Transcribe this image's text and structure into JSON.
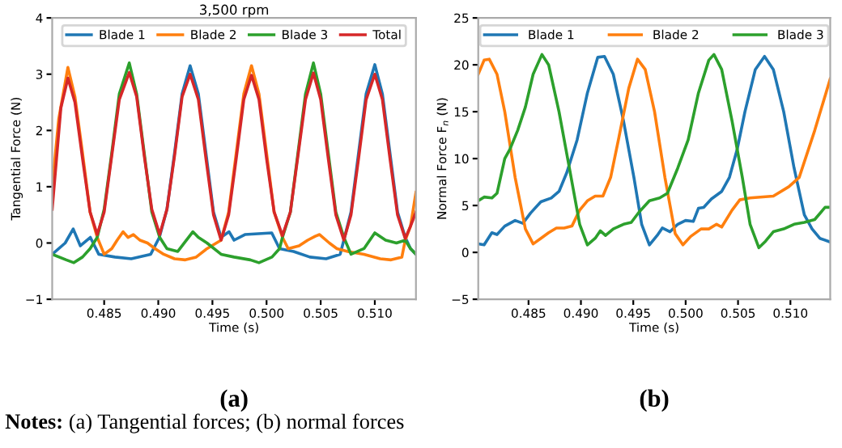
{
  "chart_data": [
    {
      "type": "line",
      "title": "3,500 rpm",
      "xlabel": "Time (s)",
      "ylabel": "Tangential Force (N)",
      "xlim": [
        0.4802,
        0.5138
      ],
      "xticks": [
        {
          "value": 0.485,
          "label": "0.485"
        },
        {
          "value": 0.49,
          "label": "0.490"
        },
        {
          "value": 0.495,
          "label": "0.495"
        },
        {
          "value": 0.5,
          "label": "0.500"
        },
        {
          "value": 0.505,
          "label": "0.505"
        },
        {
          "value": 0.51,
          "label": "0.510"
        }
      ],
      "ylim": [
        -1,
        4
      ],
      "yticks": [
        {
          "value": -1,
          "label": "−1"
        },
        0,
        1,
        2,
        3,
        4
      ],
      "legend": "top",
      "grid": false,
      "annotations": [
        "(a)",
        "Notes: (a) Tangential forces; (b) normal forces"
      ],
      "series": [
        {
          "name": "Blade 1",
          "color": "#1f77b4",
          "x": [
            0.4802,
            0.4814,
            0.48214,
            0.4828,
            0.48372,
            0.4845,
            0.486,
            0.4875,
            0.4893,
            0.4901,
            0.4908,
            0.4915,
            0.4922,
            0.49294,
            0.4937,
            0.4944,
            0.4951,
            0.4958,
            0.49654,
            0.497,
            0.498,
            0.50048,
            0.5012,
            0.5025,
            0.504,
            0.5055,
            0.5068,
            0.50714,
            0.5078,
            0.5085,
            0.5092,
            0.51,
            0.5107,
            0.5114,
            0.5121,
            0.51281,
            0.5133,
            0.5138
          ],
          "values": [
            -0.2,
            0.0,
            0.25,
            -0.05,
            0.1,
            -0.2,
            -0.25,
            -0.28,
            -0.2,
            0.1,
            0.6,
            1.6,
            2.65,
            3.15,
            2.65,
            1.6,
            0.55,
            0.1,
            0.2,
            0.05,
            0.15,
            0.18,
            -0.1,
            -0.15,
            -0.25,
            -0.28,
            -0.2,
            0.05,
            0.55,
            1.6,
            2.65,
            3.17,
            2.65,
            1.6,
            0.55,
            0.1,
            -0.1,
            -0.2
          ]
        },
        {
          "name": "Blade 2",
          "color": "#ff7f0e",
          "x": [
            0.4802,
            0.4808,
            0.48165,
            0.4823,
            0.483,
            0.4837,
            0.48436,
            0.485,
            0.4857,
            0.4862,
            0.48675,
            0.4872,
            0.4877,
            0.4883,
            0.489,
            0.4897,
            0.4905,
            0.4915,
            0.4925,
            0.4935,
            0.4945,
            0.4958,
            0.4965,
            0.4972,
            0.4979,
            0.49861,
            0.4993,
            0.5,
            0.5007,
            0.50147,
            0.502,
            0.503,
            0.5038,
            0.5045,
            0.5049,
            0.5058,
            0.5065,
            0.5075,
            0.509,
            0.5105,
            0.5115,
            0.5125,
            0.51281,
            0.5133,
            0.5138
          ],
          "values": [
            1.0,
            2.2,
            3.12,
            2.6,
            1.6,
            0.55,
            0.1,
            -0.2,
            -0.1,
            0.05,
            0.2,
            0.1,
            0.15,
            0.05,
            0.0,
            -0.1,
            -0.2,
            -0.28,
            -0.3,
            -0.25,
            -0.1,
            0.05,
            0.55,
            1.6,
            2.65,
            3.15,
            2.65,
            1.6,
            0.55,
            0.1,
            -0.1,
            -0.05,
            0.05,
            0.12,
            0.15,
            0.0,
            -0.1,
            -0.15,
            -0.2,
            -0.28,
            -0.3,
            -0.25,
            0.05,
            0.3,
            0.9
          ]
        },
        {
          "name": "Blade 3",
          "color": "#2ca02c",
          "x": [
            0.4802,
            0.4815,
            0.4822,
            0.483,
            0.4837,
            0.48436,
            0.485,
            0.4857,
            0.4864,
            0.48732,
            0.488,
            0.4887,
            0.4894,
            0.49013,
            0.4908,
            0.4918,
            0.49319,
            0.4937,
            0.4945,
            0.4958,
            0.497,
            0.4985,
            0.4993,
            0.5005,
            0.5012,
            0.50147,
            0.5022,
            0.5029,
            0.5036,
            0.50433,
            0.505,
            0.5057,
            0.5064,
            0.50714,
            0.5078,
            0.509,
            0.51,
            0.511,
            0.512,
            0.51281,
            0.5133,
            0.5138
          ],
          "values": [
            -0.2,
            -0.3,
            -0.35,
            -0.25,
            -0.1,
            0.1,
            0.6,
            1.6,
            2.65,
            3.2,
            2.65,
            1.6,
            0.55,
            0.1,
            -0.1,
            -0.15,
            0.2,
            0.1,
            0.0,
            -0.2,
            -0.25,
            -0.3,
            -0.35,
            -0.25,
            -0.1,
            0.1,
            0.55,
            1.6,
            2.65,
            3.2,
            2.65,
            1.6,
            0.55,
            0.1,
            -0.2,
            -0.1,
            0.18,
            0.05,
            0.0,
            0.05,
            -0.1,
            -0.2
          ]
        },
        {
          "name": "Total",
          "color": "#d62728",
          "x": [
            0.4802,
            0.4806,
            0.481,
            0.48165,
            0.4823,
            0.483,
            0.4837,
            0.48436,
            0.485,
            0.4857,
            0.4864,
            0.48732,
            0.488,
            0.4887,
            0.4894,
            0.49013,
            0.4908,
            0.4915,
            0.4922,
            0.49294,
            0.4937,
            0.4944,
            0.4951,
            0.4958,
            0.4965,
            0.4972,
            0.4979,
            0.49861,
            0.4993,
            0.5,
            0.5007,
            0.50147,
            0.5022,
            0.5029,
            0.5036,
            0.50433,
            0.505,
            0.5057,
            0.5064,
            0.50714,
            0.5078,
            0.5085,
            0.5092,
            0.51,
            0.5107,
            0.5114,
            0.5121,
            0.51281,
            0.5133,
            0.5138
          ],
          "values": [
            0.6,
            1.5,
            2.4,
            2.93,
            2.5,
            1.5,
            0.55,
            0.15,
            0.55,
            1.55,
            2.55,
            3.03,
            2.6,
            1.55,
            0.6,
            0.15,
            0.6,
            1.55,
            2.6,
            3.0,
            2.55,
            1.5,
            0.5,
            0.05,
            0.5,
            1.5,
            2.55,
            2.98,
            2.55,
            1.5,
            0.55,
            0.13,
            0.55,
            1.55,
            2.55,
            3.02,
            2.55,
            1.5,
            0.5,
            0.05,
            0.5,
            1.5,
            2.55,
            3.0,
            2.55,
            1.5,
            0.5,
            0.08,
            0.3,
            0.55
          ]
        }
      ]
    },
    {
      "type": "line",
      "xlabel": "Time (s)",
      "ylabel": "Normal Force F$_{n}$ (N)",
      "xlim": [
        0.4802,
        0.5138
      ],
      "xticks": [
        {
          "value": 0.485,
          "label": "0.485"
        },
        {
          "value": 0.49,
          "label": "0.490"
        },
        {
          "value": 0.495,
          "label": "0.495"
        },
        {
          "value": 0.5,
          "label": "0.500"
        },
        {
          "value": 0.505,
          "label": "0.505"
        },
        {
          "value": 0.51,
          "label": "0.510"
        }
      ],
      "ylim": [
        -5,
        25
      ],
      "yticks": [
        {
          "value": -5,
          "label": "−5"
        },
        0,
        5,
        10,
        15,
        20,
        25
      ],
      "legend": "top",
      "grid": false,
      "annotations": [
        "(b)"
      ],
      "series": [
        {
          "name": "Blade 1",
          "color": "#1f77b4",
          "x": [
            0.4802,
            0.48076,
            0.4815,
            0.48199,
            0.48273,
            0.48372,
            0.48446,
            0.4852,
            0.48618,
            0.48717,
            0.48791,
            0.48865,
            0.48964,
            0.49062,
            0.49161,
            0.49225,
            0.49309,
            0.49407,
            0.49506,
            0.4958,
            0.49654,
            0.49728,
            0.49777,
            0.49851,
            0.49925,
            0.49999,
            0.50073,
            0.50122,
            0.50172,
            0.50246,
            0.50344,
            0.50418,
            0.50492,
            0.50566,
            0.50665,
            0.50753,
            0.50837,
            0.50936,
            0.51035,
            0.51133,
            0.51207,
            0.51281,
            0.5138
          ],
          "values": [
            0.9,
            0.8,
            2.1,
            1.9,
            2.8,
            3.4,
            3.1,
            4.2,
            5.4,
            5.8,
            6.5,
            8.5,
            12,
            17,
            20.8,
            20.9,
            19,
            14,
            8,
            3,
            0.8,
            1.8,
            2.6,
            2.2,
            3.0,
            3.4,
            3.3,
            4.7,
            4.8,
            5.7,
            6.5,
            8,
            11,
            15,
            19.5,
            20.9,
            19.5,
            15,
            9,
            4,
            2.5,
            1.5,
            1.1
          ]
        },
        {
          "name": "Blade 2",
          "color": "#ff7f0e",
          "x": [
            0.4802,
            0.48076,
            0.48125,
            0.48199,
            0.48273,
            0.48372,
            0.4847,
            0.48544,
            0.48618,
            0.48692,
            0.48766,
            0.4884,
            0.48914,
            0.48988,
            0.49062,
            0.49136,
            0.4921,
            0.49284,
            0.49358,
            0.49457,
            0.4954,
            0.49614,
            0.49703,
            0.49802,
            0.499,
            0.49974,
            0.50048,
            0.50147,
            0.50221,
            0.50295,
            0.50344,
            0.50443,
            0.50517,
            0.50615,
            0.50837,
            0.50985,
            0.51084,
            0.51232,
            0.5138
          ],
          "values": [
            19,
            20.5,
            20.6,
            19,
            15,
            8,
            2.5,
            0.9,
            1.5,
            2.1,
            2.6,
            2.6,
            2.8,
            4.5,
            5.5,
            6.0,
            6.0,
            8,
            12,
            17.5,
            20.6,
            19.5,
            15,
            8,
            2,
            0.8,
            1.7,
            2.5,
            2.5,
            3.0,
            2.7,
            4.5,
            5.6,
            5.8,
            6.0,
            7,
            8,
            13,
            18.5
          ]
        },
        {
          "name": "Blade 3",
          "color": "#2ca02c",
          "x": [
            0.4802,
            0.48076,
            0.4815,
            0.48199,
            0.48273,
            0.48322,
            0.48396,
            0.4847,
            0.48544,
            0.48628,
            0.48692,
            0.48791,
            0.4889,
            0.48988,
            0.49062,
            0.49136,
            0.49185,
            0.49235,
            0.49309,
            0.49407,
            0.49481,
            0.49555,
            0.49654,
            0.49752,
            0.49826,
            0.49925,
            0.50024,
            0.50122,
            0.50221,
            0.5027,
            0.50344,
            0.50443,
            0.50541,
            0.50615,
            0.50699,
            0.50763,
            0.50837,
            0.50936,
            0.51035,
            0.51133,
            0.51232,
            0.51331,
            0.5138
          ],
          "values": [
            5.5,
            5.9,
            5.8,
            6.3,
            10,
            11,
            13,
            15.5,
            19,
            21.1,
            20,
            15,
            9,
            3,
            0.8,
            1.5,
            2.3,
            1.8,
            2.5,
            3.0,
            3.2,
            4.3,
            5.5,
            5.8,
            6.3,
            9,
            12,
            17,
            20.5,
            21.1,
            19.5,
            14,
            8,
            3,
            0.5,
            1.2,
            2.2,
            2.5,
            3.0,
            3.2,
            3.5,
            4.8,
            4.8
          ]
        }
      ]
    }
  ]
}
